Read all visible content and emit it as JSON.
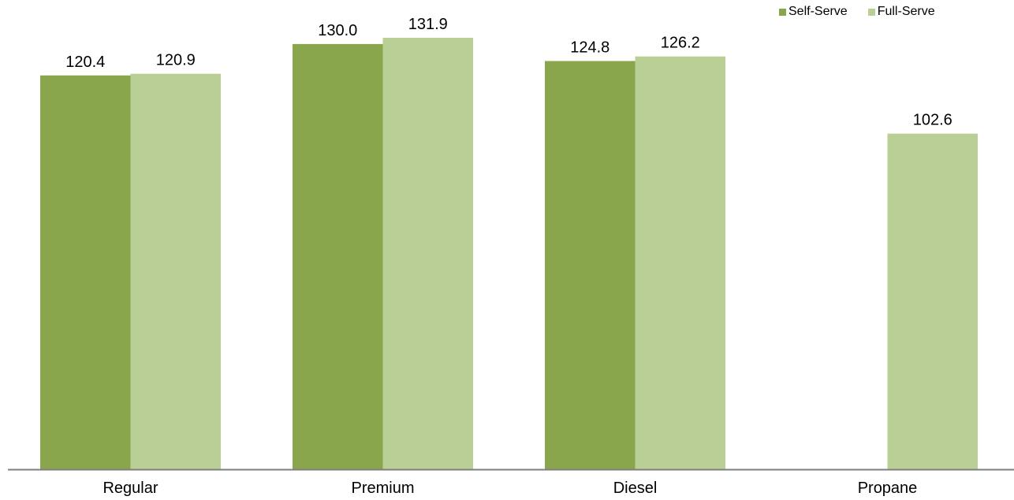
{
  "chart_data": {
    "type": "bar",
    "categories": [
      "Regular",
      "Premium",
      "Diesel",
      "Propane"
    ],
    "series": [
      {
        "name": "Self-Serve",
        "color": "#8aa64c",
        "values": [
          120.4,
          130.0,
          124.8,
          null
        ],
        "labels": [
          "120.4",
          "130.0",
          "124.8",
          ""
        ]
      },
      {
        "name": "Full-Serve",
        "color": "#bacf96",
        "values": [
          120.9,
          131.9,
          126.2,
          102.6
        ],
        "labels": [
          "120.9",
          "131.9",
          "126.2",
          "102.6"
        ]
      }
    ],
    "ylim": [
      0,
      140
    ],
    "grid": false,
    "legend": "top-right",
    "axis_color": "#7f7f7f"
  }
}
